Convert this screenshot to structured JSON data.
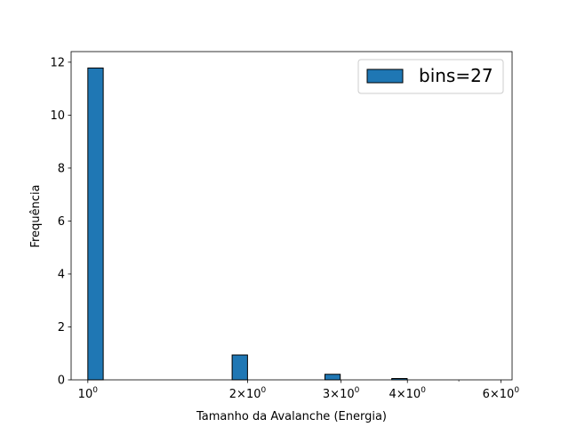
{
  "chart_data": {
    "type": "bar",
    "x_scale": "log",
    "xlabel": "Tamanho da Avalanche (Energia)",
    "ylabel": "Frequência",
    "xlim": [
      0.93,
      6.3
    ],
    "ylim": [
      0,
      12.4
    ],
    "x_ticks": [
      {
        "value": 1,
        "base": "10",
        "exp": "0",
        "coef": ""
      },
      {
        "value": 2,
        "base": "10",
        "exp": "0",
        "coef": "2×"
      },
      {
        "value": 3,
        "base": "10",
        "exp": "0",
        "coef": "3×"
      },
      {
        "value": 4,
        "base": "10",
        "exp": "0",
        "coef": "4×"
      },
      {
        "value": 6,
        "base": "10",
        "exp": "0",
        "coef": "6×"
      }
    ],
    "y_ticks": [
      "0",
      "2",
      "4",
      "6",
      "8",
      "10",
      "12"
    ],
    "series": [
      {
        "name": "bins=27",
        "color": "#1f77b4",
        "bars": [
          {
            "x0": 1.0,
            "x1": 1.069,
            "value": 11.78
          },
          {
            "x0": 1.87,
            "x1": 1.999,
            "value": 0.94
          },
          {
            "x0": 2.797,
            "x1": 2.989,
            "value": 0.21
          },
          {
            "x0": 3.738,
            "x1": 3.996,
            "value": 0.05
          }
        ]
      }
    ],
    "grid": false,
    "legend_position": "top-right"
  }
}
